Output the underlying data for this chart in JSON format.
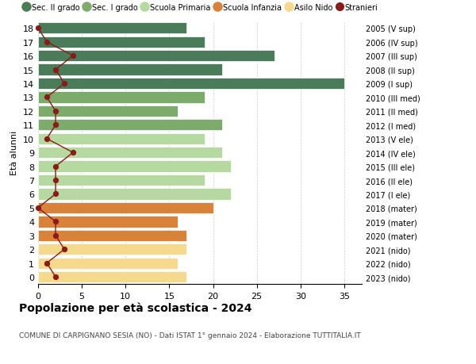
{
  "ages": [
    18,
    17,
    16,
    15,
    14,
    13,
    12,
    11,
    10,
    9,
    8,
    7,
    6,
    5,
    4,
    3,
    2,
    1,
    0
  ],
  "right_labels": [
    "2005 (V sup)",
    "2006 (IV sup)",
    "2007 (III sup)",
    "2008 (II sup)",
    "2009 (I sup)",
    "2010 (III med)",
    "2011 (II med)",
    "2012 (I med)",
    "2013 (V ele)",
    "2014 (IV ele)",
    "2015 (III ele)",
    "2016 (II ele)",
    "2017 (I ele)",
    "2018 (mater)",
    "2019 (mater)",
    "2020 (mater)",
    "2021 (nido)",
    "2022 (nido)",
    "2023 (nido)"
  ],
  "bar_values": [
    17,
    19,
    27,
    21,
    35,
    19,
    16,
    21,
    19,
    21,
    22,
    19,
    22,
    20,
    16,
    17,
    17,
    16,
    17
  ],
  "bar_colors": [
    "#4a7c59",
    "#4a7c59",
    "#4a7c59",
    "#4a7c59",
    "#4a7c59",
    "#7dab6b",
    "#7dab6b",
    "#7dab6b",
    "#b5d9a0",
    "#b5d9a0",
    "#b5d9a0",
    "#b5d9a0",
    "#b5d9a0",
    "#d9823a",
    "#d9823a",
    "#d9823a",
    "#f5d98c",
    "#f5d98c",
    "#f5d98c"
  ],
  "stranieri_values": [
    0,
    1,
    4,
    2,
    3,
    1,
    2,
    2,
    1,
    4,
    2,
    2,
    2,
    0,
    2,
    2,
    3,
    1,
    2
  ],
  "stranieri_color": "#8b1a1a",
  "ylabel_left": "Età alunni",
  "xlim": [
    0,
    37
  ],
  "xticks": [
    0,
    5,
    10,
    15,
    20,
    25,
    30,
    35
  ],
  "title": "Popolazione per età scolastica - 2024",
  "subtitle": "COMUNE DI CARPIGNANO SESIA (NO) - Dati ISTAT 1° gennaio 2024 - Elaborazione TUTTITALIA.IT",
  "legend_labels": [
    "Sec. II grado",
    "Sec. I grado",
    "Scuola Primaria",
    "Scuola Infanzia",
    "Asilo Nido",
    "Stranieri"
  ],
  "legend_colors": [
    "#4a7c59",
    "#7dab6b",
    "#b5d9a0",
    "#d9823a",
    "#f5d98c",
    "#8b1a1a"
  ],
  "bg_color": "#ffffff",
  "bar_height": 0.82,
  "grid_color": "#cccccc"
}
